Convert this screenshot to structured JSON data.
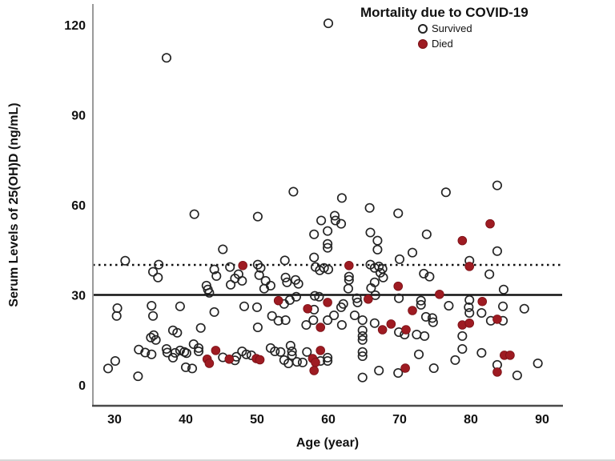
{
  "chart_data": {
    "type": "scatter",
    "title": "Mortality due to COVID-19",
    "xlabel": "Age (year)",
    "ylabel": "Serum Levels of 25(OH)D (ng/mL)",
    "xlim": [
      27,
      93
    ],
    "ylim": [
      0,
      125
    ],
    "x_ticks": [
      30,
      40,
      50,
      60,
      70,
      80,
      90
    ],
    "y_ticks": [
      0,
      30,
      60,
      90,
      120
    ],
    "grid": false,
    "legend_position": "top-right",
    "reference_lines": [
      {
        "y": 30,
        "style": "solid"
      },
      {
        "y": 40,
        "style": "dotted"
      }
    ],
    "series": [
      {
        "name": "Survived",
        "marker": "open-circle",
        "stroke": "#242424",
        "fill": "none",
        "points": [
          [
            37.3,
            109
          ],
          [
            60,
            120.5
          ],
          [
            55.1,
            64.4
          ],
          [
            76.5,
            64.2
          ],
          [
            83.7,
            66.5
          ],
          [
            61.9,
            62.3
          ],
          [
            65.8,
            59
          ],
          [
            69.8,
            57.2
          ],
          [
            41.2,
            56.9
          ],
          [
            50.1,
            56.1
          ],
          [
            60.9,
            56.4
          ],
          [
            61,
            54.8
          ],
          [
            59,
            54.8
          ],
          [
            61.8,
            53.7
          ],
          [
            58,
            50.2
          ],
          [
            59.9,
            51.3
          ],
          [
            65.9,
            50.8
          ],
          [
            73.8,
            50.2
          ],
          [
            66.9,
            48.1
          ],
          [
            59.9,
            47
          ],
          [
            59.9,
            45.7
          ],
          [
            66.9,
            45.1
          ],
          [
            45.2,
            45.2
          ],
          [
            71.8,
            44.1
          ],
          [
            83.7,
            44.6
          ],
          [
            58,
            42.5
          ],
          [
            53.9,
            41.5
          ],
          [
            70,
            41.9
          ],
          [
            79.8,
            41.4
          ],
          [
            31.5,
            41.4
          ],
          [
            50.1,
            40.1
          ],
          [
            36.2,
            40.1
          ],
          [
            65.9,
            40.1
          ],
          [
            46.2,
            39.3
          ],
          [
            58.2,
            39.3
          ],
          [
            58.8,
            38.2
          ],
          [
            59.4,
            39
          ],
          [
            60,
            38.5
          ],
          [
            66.5,
            39
          ],
          [
            67.1,
            39.5
          ],
          [
            67.6,
            38.7
          ],
          [
            67.3,
            37.4
          ],
          [
            50.5,
            39
          ],
          [
            44,
            38.5
          ],
          [
            35.4,
            37.7
          ],
          [
            47.4,
            36.9
          ],
          [
            73.4,
            37.1
          ],
          [
            82.6,
            36.9
          ],
          [
            36.1,
            35.8
          ],
          [
            44.3,
            36.3
          ],
          [
            46.9,
            35.5
          ],
          [
            47.9,
            34.7
          ],
          [
            51.2,
            34.7
          ],
          [
            50.3,
            36.6
          ],
          [
            74.2,
            36.1
          ],
          [
            67.7,
            35.8
          ],
          [
            54,
            35.8
          ],
          [
            54.2,
            34.2
          ],
          [
            55.4,
            35
          ],
          [
            62.9,
            36.1
          ],
          [
            62.9,
            35
          ],
          [
            66.5,
            34.2
          ],
          [
            42.9,
            33.1
          ],
          [
            46.3,
            33.4
          ],
          [
            55.8,
            33.7
          ],
          [
            51.9,
            33.1
          ],
          [
            43.1,
            31.8
          ],
          [
            43.3,
            30.7
          ],
          [
            51,
            32.1
          ],
          [
            62.8,
            32.1
          ],
          [
            66,
            32.3
          ],
          [
            84.6,
            31.8
          ],
          [
            55.5,
            29.4
          ],
          [
            58.1,
            29.7
          ],
          [
            58.7,
            29.4
          ],
          [
            66.6,
            29.9
          ],
          [
            53.8,
            27
          ],
          [
            54.6,
            28.3
          ],
          [
            58,
            25.1
          ],
          [
            61.8,
            25.9
          ],
          [
            62.1,
            27
          ],
          [
            64,
            28.9
          ],
          [
            64.1,
            27.5
          ],
          [
            69.9,
            28.9
          ],
          [
            73,
            28.1
          ],
          [
            73,
            26.7
          ],
          [
            76.9,
            26.4
          ],
          [
            79.8,
            28.3
          ],
          [
            79.7,
            25.9
          ],
          [
            30.4,
            25.6
          ],
          [
            35.2,
            26.4
          ],
          [
            39.2,
            26.2
          ],
          [
            44,
            24.3
          ],
          [
            48.2,
            26.2
          ],
          [
            50,
            25.9
          ],
          [
            87.5,
            25.4
          ],
          [
            84.5,
            26.2
          ],
          [
            30.3,
            23
          ],
          [
            35.4,
            23
          ],
          [
            52.1,
            23
          ],
          [
            53,
            21.4
          ],
          [
            54,
            21.6
          ],
          [
            56.9,
            20
          ],
          [
            57.9,
            21.6
          ],
          [
            59.9,
            21.6
          ],
          [
            60.8,
            23.2
          ],
          [
            61.9,
            20
          ],
          [
            63.7,
            23.2
          ],
          [
            64.8,
            21.6
          ],
          [
            66.5,
            20.6
          ],
          [
            73.7,
            22.7
          ],
          [
            74.6,
            22.3
          ],
          [
            74.7,
            20.9
          ],
          [
            79.8,
            24
          ],
          [
            81.5,
            24
          ],
          [
            82.8,
            21.4
          ],
          [
            84.5,
            21.4
          ],
          [
            42.1,
            19
          ],
          [
            50.1,
            19.2
          ],
          [
            38.2,
            18.2
          ],
          [
            38.8,
            17.4
          ],
          [
            35.1,
            15.8
          ],
          [
            35.5,
            16.6
          ],
          [
            35.8,
            15
          ],
          [
            64.8,
            18.2
          ],
          [
            69.9,
            17.6
          ],
          [
            70.7,
            16.8
          ],
          [
            72.4,
            16.8
          ],
          [
            73.5,
            16.3
          ],
          [
            64.8,
            16.3
          ],
          [
            64.8,
            15
          ],
          [
            78.8,
            16.3
          ],
          [
            33.4,
            11.8
          ],
          [
            34.3,
            10.8
          ],
          [
            35.2,
            10.2
          ],
          [
            37.3,
            12
          ],
          [
            37.4,
            10.8
          ],
          [
            38.5,
            10.7
          ],
          [
            39.2,
            11.5
          ],
          [
            39.8,
            11
          ],
          [
            40.1,
            10.6
          ],
          [
            41.1,
            13.6
          ],
          [
            41.8,
            12.3
          ],
          [
            41.8,
            11.2
          ],
          [
            47.9,
            11.2
          ],
          [
            48.5,
            10.2
          ],
          [
            51.9,
            12.3
          ],
          [
            52.5,
            11.2
          ],
          [
            53.3,
            11
          ],
          [
            54.7,
            13.1
          ],
          [
            54.9,
            11.2
          ],
          [
            57,
            11
          ],
          [
            64.8,
            11
          ],
          [
            72.7,
            10.2
          ],
          [
            81.5,
            10.7
          ],
          [
            78.8,
            12
          ],
          [
            54.9,
            9.9
          ],
          [
            64.8,
            9.6
          ],
          [
            38.2,
            9.1
          ],
          [
            45.2,
            9.2
          ],
          [
            47.1,
            9.4
          ],
          [
            46.9,
            8.2
          ],
          [
            49.2,
            9.9
          ],
          [
            59.9,
            9.1
          ],
          [
            59.9,
            8
          ],
          [
            53.8,
            8.3
          ],
          [
            54.4,
            7.2
          ],
          [
            55.6,
            7.7
          ],
          [
            56.4,
            7.5
          ],
          [
            58.9,
            8
          ],
          [
            30.1,
            8
          ],
          [
            77.8,
            8.3
          ],
          [
            89.4,
            7.2
          ],
          [
            29.1,
            5.5
          ],
          [
            33.3,
            2.9
          ],
          [
            40,
            5.9
          ],
          [
            40.9,
            5.5
          ],
          [
            67.1,
            4.8
          ],
          [
            69.8,
            4
          ],
          [
            64.8,
            2.5
          ],
          [
            74.8,
            5.6
          ],
          [
            83.7,
            6.7
          ],
          [
            86.5,
            3.2
          ]
        ]
      },
      {
        "name": "Died",
        "marker": "filled-circle",
        "stroke": "#7a1016",
        "fill": "#9e1b22",
        "points": [
          [
            48,
            39.8
          ],
          [
            62.9,
            39.8
          ],
          [
            79.8,
            39.5
          ],
          [
            69.8,
            32.9
          ],
          [
            75.6,
            30.2
          ],
          [
            53,
            28.1
          ],
          [
            57.1,
            25.4
          ],
          [
            59.9,
            27.5
          ],
          [
            65.6,
            28.6
          ],
          [
            71.8,
            24.8
          ],
          [
            81.6,
            27.8
          ],
          [
            82.7,
            53.7
          ],
          [
            78.8,
            48.1
          ],
          [
            58.9,
            19.2
          ],
          [
            67.6,
            18.4
          ],
          [
            68.8,
            20.3
          ],
          [
            70.9,
            18.4
          ],
          [
            78.8,
            20
          ],
          [
            79.8,
            20.6
          ],
          [
            83.7,
            21.9
          ],
          [
            44.2,
            11.5
          ],
          [
            46.1,
            8.6
          ],
          [
            49.9,
            8.8
          ],
          [
            50.4,
            8.4
          ],
          [
            43,
            8.6
          ],
          [
            43.3,
            7.2
          ],
          [
            58.9,
            11.5
          ],
          [
            57.8,
            8.8
          ],
          [
            58.2,
            7.5
          ],
          [
            58,
            4.8
          ],
          [
            70.8,
            5.6
          ],
          [
            84.7,
            9.9
          ],
          [
            85.5,
            9.9
          ],
          [
            83.7,
            4.3
          ]
        ]
      }
    ]
  },
  "legend": {
    "title": "Mortality due to COVID-19",
    "survived_label": "Survived",
    "died_label": "Died"
  },
  "colors": {
    "died_fill": "#9e1b22",
    "point_stroke": "#242424",
    "reference_line": "#111111",
    "y_axis_line": "#9a9a9a",
    "x_axis_line": "#4a4a4a"
  }
}
